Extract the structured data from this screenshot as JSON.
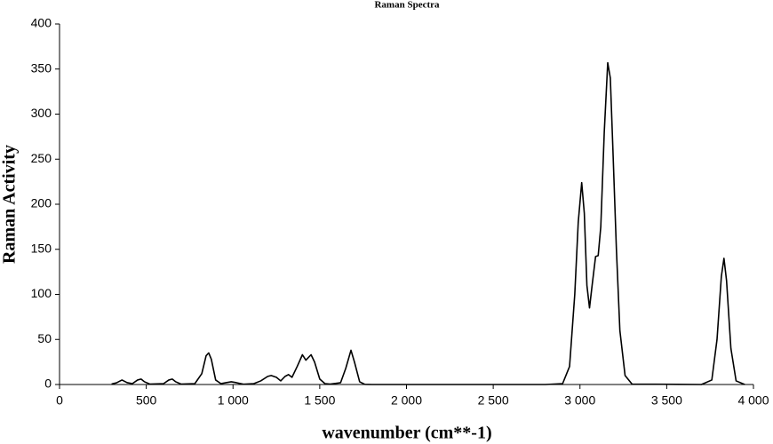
{
  "chart_data": {
    "type": "line",
    "title": "Raman Spectra",
    "x_label": "wavenumber (cm**-1)",
    "y_label": "Raman Activity",
    "x": [
      300,
      330,
      360,
      390,
      420,
      450,
      470,
      490,
      520,
      600,
      630,
      650,
      670,
      700,
      780,
      820,
      845,
      860,
      875,
      900,
      930,
      960,
      990,
      1020,
      1060,
      1120,
      1160,
      1200,
      1220,
      1250,
      1275,
      1300,
      1320,
      1340,
      1370,
      1400,
      1420,
      1450,
      1470,
      1500,
      1530,
      1560,
      1620,
      1650,
      1680,
      1700,
      1730,
      1760,
      1800,
      2800,
      2900,
      2940,
      2970,
      2990,
      3010,
      3025,
      3040,
      3055,
      3070,
      3090,
      3105,
      3120,
      3140,
      3160,
      3175,
      3190,
      3210,
      3230,
      3260,
      3300,
      3700,
      3760,
      3790,
      3815,
      3830,
      3845,
      3870,
      3900,
      3950
    ],
    "series": [
      {
        "color": "#000000",
        "values": [
          0.5,
          2,
          5,
          2,
          1,
          5,
          6,
          3,
          0.5,
          1,
          5,
          6,
          3,
          0.5,
          1,
          12,
          32,
          35,
          28,
          5,
          1,
          2,
          3,
          2,
          0.3,
          1,
          4,
          9,
          10,
          8,
          4,
          9,
          11,
          8,
          20,
          33,
          27,
          33,
          25,
          6,
          1,
          0.5,
          2,
          18,
          38,
          25,
          3,
          0.2,
          0,
          0,
          1,
          20,
          100,
          180,
          224,
          190,
          110,
          85,
          110,
          142,
          143,
          175,
          280,
          357,
          340,
          260,
          150,
          60,
          10,
          0.5,
          0,
          5,
          50,
          120,
          140,
          115,
          40,
          4,
          0
        ]
      }
    ],
    "xlim": [
      0,
      4000
    ],
    "xticks": [
      0,
      500,
      {
        "value": 1000,
        "label": "1 000"
      },
      {
        "value": 1500,
        "label": "1 500"
      },
      {
        "value": 2000,
        "label": "2 000"
      },
      {
        "value": 2500,
        "label": "2 500"
      },
      {
        "value": 3000,
        "label": "3 000"
      },
      {
        "value": 3500,
        "label": "3 500"
      },
      {
        "value": 4000,
        "label": "4 000"
      }
    ],
    "ylim": [
      0,
      400
    ],
    "yticks": [
      0,
      50,
      100,
      150,
      200,
      250,
      300,
      350,
      400
    ]
  }
}
